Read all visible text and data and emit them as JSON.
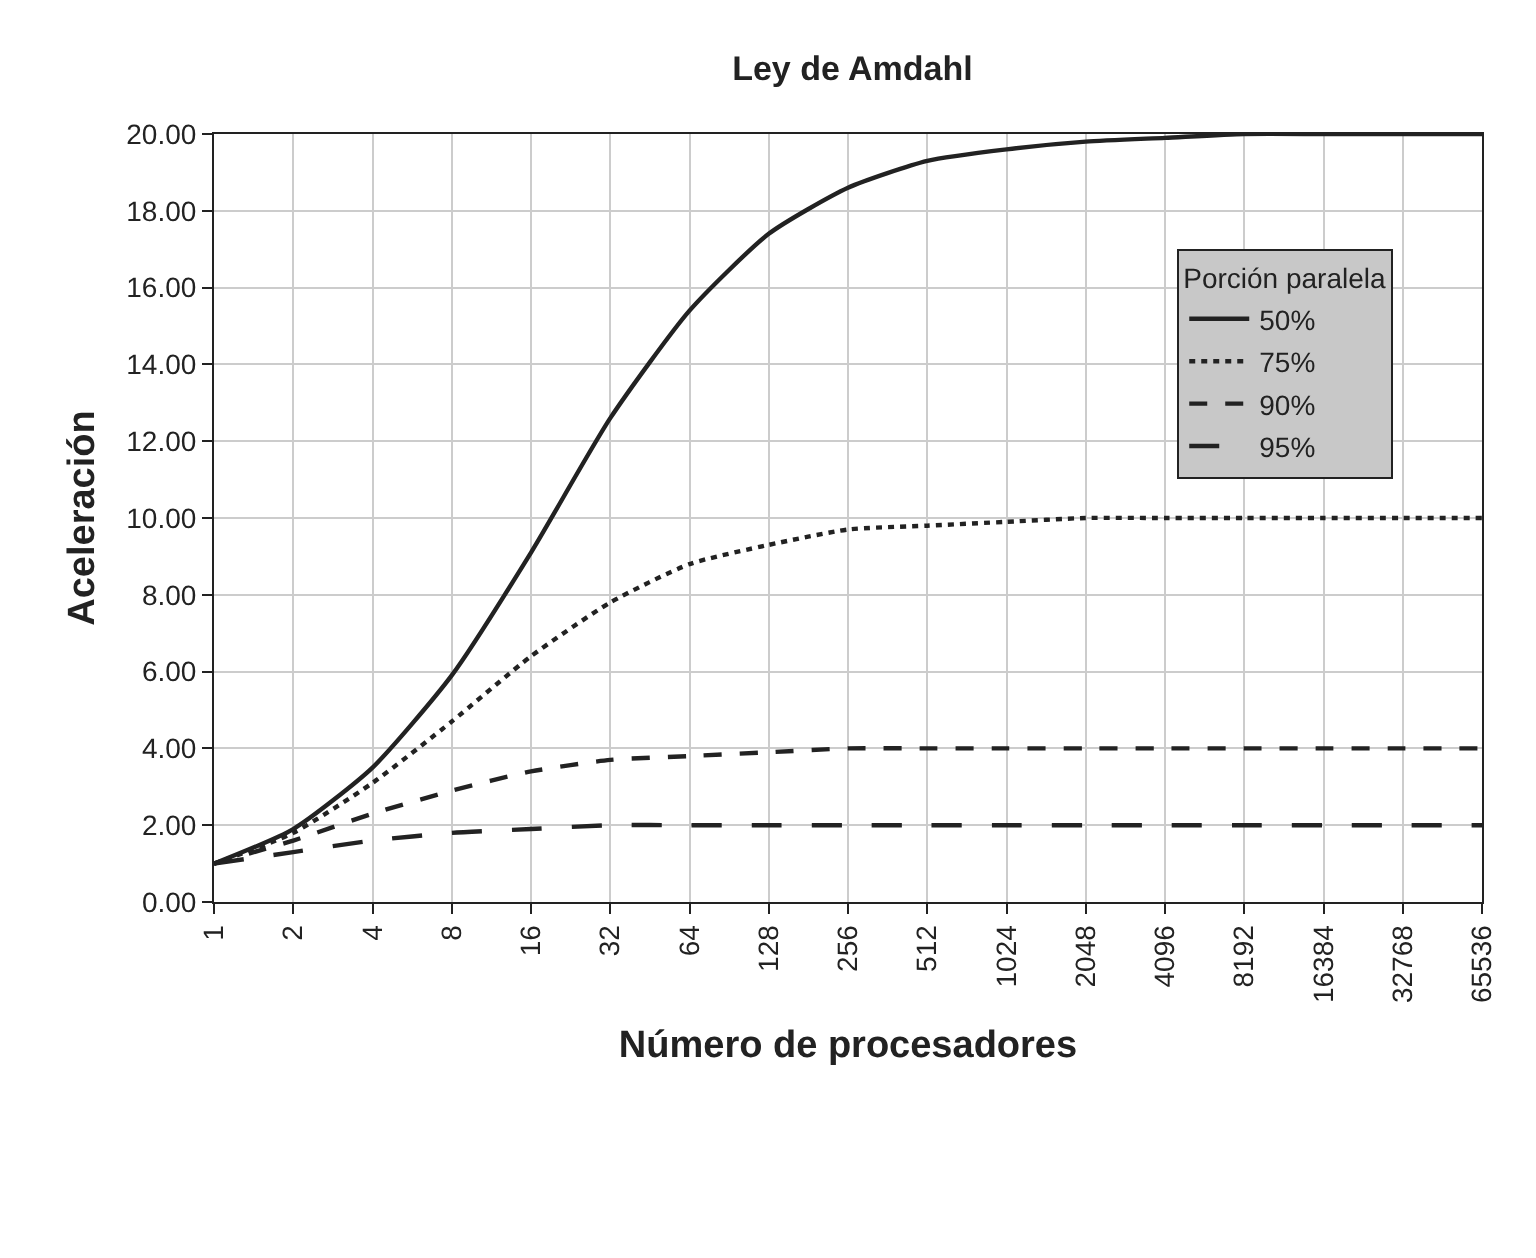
{
  "chart_data": {
    "type": "line",
    "title": "Ley de Amdahl",
    "xlabel": "Número de procesadores",
    "ylabel": "Aceleración",
    "legend_title": "Porción paralela",
    "x": [
      1,
      2,
      4,
      8,
      16,
      32,
      64,
      128,
      256,
      512,
      1024,
      2048,
      4096,
      8192,
      16384,
      32768,
      65536
    ],
    "series": [
      {
        "name": "50%",
        "color": "#222222",
        "line_style": "solid",
        "values": [
          1,
          1.9,
          3.5,
          5.9,
          9.1,
          12.6,
          15.4,
          17.4,
          18.6,
          19.3,
          19.6,
          19.8,
          19.9,
          20,
          20,
          20,
          20
        ]
      },
      {
        "name": "75%",
        "color": "#222222",
        "line_style": "dotted",
        "values": [
          1,
          1.8,
          3.1,
          4.7,
          6.4,
          7.8,
          8.8,
          9.3,
          9.7,
          9.8,
          9.9,
          10,
          10,
          10,
          10,
          10,
          10
        ]
      },
      {
        "name": "90%",
        "color": "#222222",
        "line_style": "dashed",
        "values": [
          1,
          1.6,
          2.3,
          2.9,
          3.4,
          3.7,
          3.8,
          3.9,
          4,
          4,
          4,
          4,
          4,
          4,
          4,
          4,
          4
        ]
      },
      {
        "name": "95%",
        "color": "#222222",
        "line_style": "longdashed",
        "values": [
          1,
          1.3,
          1.6,
          1.8,
          1.9,
          2,
          2,
          2,
          2,
          2,
          2,
          2,
          2,
          2,
          2,
          2,
          2
        ]
      }
    ],
    "log": "x",
    "xlim": [
      1,
      65536
    ],
    "xticks": [
      1,
      2,
      4,
      8,
      16,
      32,
      64,
      128,
      256,
      512,
      1024,
      2048,
      4096,
      8192,
      16384,
      32768,
      65536
    ],
    "ylim": [
      0,
      20
    ],
    "yticks": [
      {
        "value": 0,
        "label": "0.00"
      },
      {
        "value": 2,
        "label": "2.00"
      },
      {
        "value": 4,
        "label": "4.00"
      },
      {
        "value": 6,
        "label": "6.00"
      },
      {
        "value": 8,
        "label": "8.00"
      },
      {
        "value": 10,
        "label": "10.00"
      },
      {
        "value": 12,
        "label": "12.00"
      },
      {
        "value": 14,
        "label": "14.00"
      },
      {
        "value": 16,
        "label": "16.00"
      },
      {
        "value": 18,
        "label": "18.00"
      },
      {
        "value": 20,
        "label": "20.00"
      }
    ],
    "grid": true,
    "legend": "top right",
    "marker": "none"
  }
}
